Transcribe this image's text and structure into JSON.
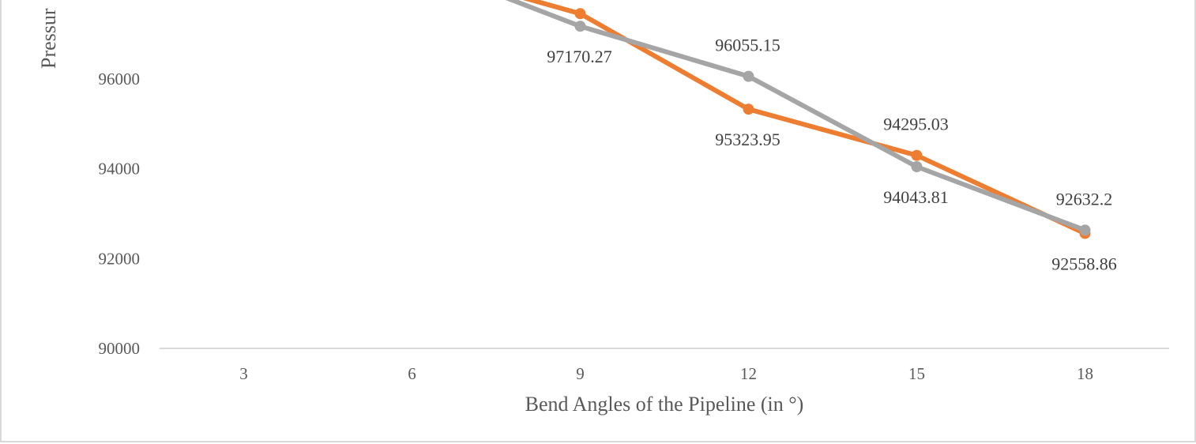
{
  "chart_data": {
    "type": "line",
    "categories": [
      "3",
      "6",
      "9",
      "12",
      "15",
      "18"
    ],
    "x": [
      3,
      6,
      9,
      12,
      15,
      18
    ],
    "series": [
      {
        "color": "#ed7d31",
        "values": [
          null,
          null,
          97450,
          95323.95,
          94295.03,
          92558.86
        ],
        "labels": [
          null,
          null,
          null,
          "95323.95",
          "94295.03",
          "92558.86"
        ]
      },
      {
        "color": "#a5a5a5",
        "values": [
          null,
          null,
          97170.27,
          96055.15,
          94043.81,
          92632.2
        ],
        "labels": [
          null,
          null,
          "97170.27",
          "96055.15",
          "94043.81",
          "92632.2"
        ]
      }
    ],
    "entering_lines": {
      "orange_y_at_left_edge": 98300,
      "gray_y_at_left_edge": 98200
    },
    "xlabel": "Bend Angles of the Pipeline (in °)",
    "ylabel": "Pressur",
    "yticks": [
      90000,
      92000,
      94000,
      96000
    ],
    "ylim": [
      90000,
      97800
    ],
    "grid": false,
    "baseline": true
  }
}
